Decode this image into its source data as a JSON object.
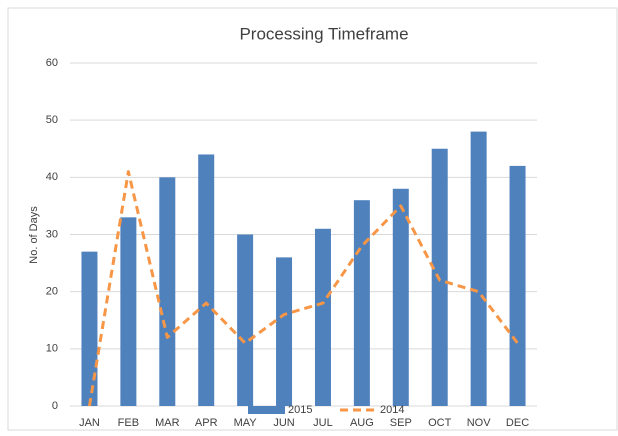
{
  "chart_data": {
    "type": "bar",
    "title": "Processing Timeframe",
    "y_label": "No. of Days",
    "categories": [
      "JAN",
      "FEB",
      "MAR",
      "APR",
      "MAY",
      "JUN",
      "JUL",
      "AUG",
      "SEP",
      "OCT",
      "NOV",
      "DEC"
    ],
    "series": [
      {
        "name": "2015",
        "type": "bar",
        "color": "#4f81bd",
        "values": [
          27,
          33,
          40,
          44,
          30,
          26,
          31,
          36,
          38,
          45,
          48,
          42
        ]
      },
      {
        "name": "2014",
        "type": "line",
        "dashed": true,
        "color": "#f79646",
        "values": [
          0,
          41,
          12,
          18,
          11,
          16,
          18,
          28,
          35,
          22,
          20,
          11
        ]
      }
    ],
    "ylim": [
      0,
      60
    ],
    "yticks": [
      0,
      10,
      20,
      30,
      40,
      50,
      60
    ],
    "grid": true,
    "legend": "bottom"
  }
}
